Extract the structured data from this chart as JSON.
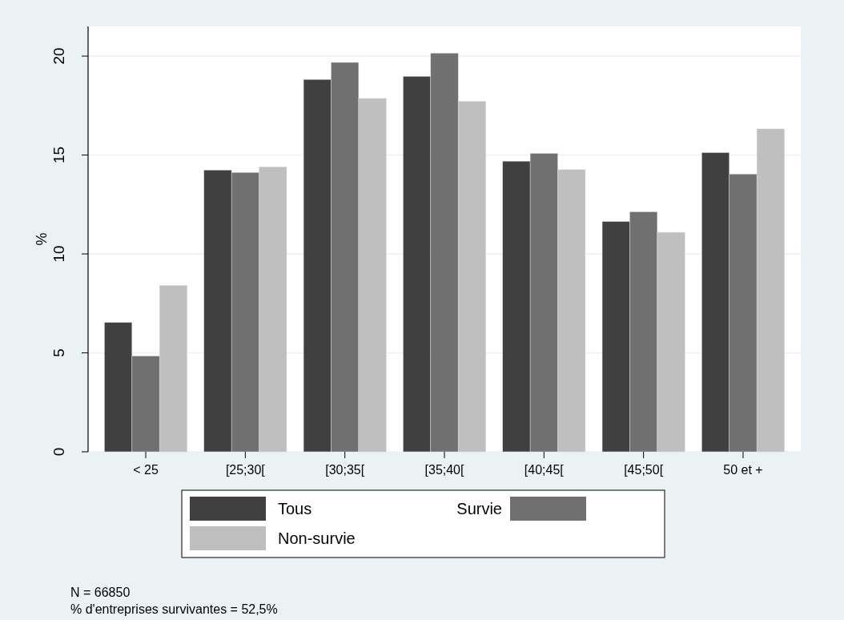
{
  "chart_data": {
    "type": "bar",
    "ylabel": "%",
    "categories": [
      "< 25",
      "[25;30[",
      "[30;35[",
      "[35;40[",
      "[40;45[",
      "[45;50[",
      "50 et +"
    ],
    "series": [
      {
        "name": "Tous",
        "color": "#404040",
        "values": [
          6.54,
          14.24,
          18.82,
          18.98,
          14.69,
          11.64,
          15.12
        ]
      },
      {
        "name": "Survie",
        "color": "#707070",
        "values": [
          4.84,
          14.12,
          19.68,
          20.15,
          15.08,
          12.13,
          14.04
        ]
      },
      {
        "name": "Non-survie",
        "color": "#bfbfbf",
        "values": [
          8.41,
          14.4,
          17.86,
          17.71,
          14.26,
          11.09,
          16.32
        ]
      }
    ],
    "ylim": [
      0,
      21.5
    ],
    "yticks": [
      0,
      5,
      10,
      15,
      20
    ],
    "grid": "y",
    "legend": "bottom",
    "annotations": [
      "N = 66850",
      "% d'entreprises survivantes = 52,5%"
    ]
  }
}
